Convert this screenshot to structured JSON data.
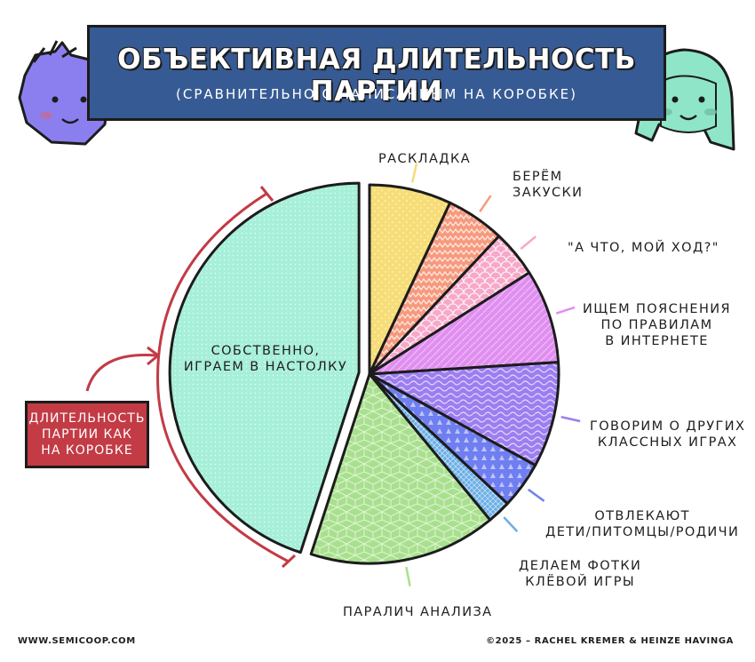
{
  "header": {
    "title": "ОБЪЕКТИВНАЯ ДЛИТЕЛЬНОСТЬ ПАРТИИ",
    "subtitle": "(СРАВНИТЕЛЬНО С НАПИСАННЫМ НА КОРОБКЕ)"
  },
  "box_label": "ДЛИТЕЛЬНОСТЬ\nПАРТИИ КАК\nНА КОРОБКЕ",
  "footer": {
    "left": "WWW.SEMICOOP.COM",
    "right": "©2025 – RACHEL KREMER & HEINZE HAVINGA"
  },
  "chart_data": {
    "type": "pie",
    "title": "ОБЪЕКТИВНАЯ ДЛИТЕЛЬНОСТЬ ПАРТИИ",
    "subtitle": "(СРАВНИТЕЛЬНО С НАПИСАННЫМ НА КОРОБКЕ)",
    "slices": [
      {
        "label": "РАСКЛАДКА",
        "value": 7,
        "color": "#f6dd77"
      },
      {
        "label": "БЕРЁМ\nЗАКУСКИ",
        "value": 5,
        "color": "#f69a7e"
      },
      {
        "label": "\"А ЧТО, МОЙ ХОД?\"",
        "value": 4,
        "color": "#f7a8c9"
      },
      {
        "label": "ИЩЕМ ПОЯСНЕНИЯ\nПО ПРАВИЛАМ\nВ ИНТЕРНЕТЕ",
        "value": 8,
        "color": "#e08ef0"
      },
      {
        "label": "ГОВОРИМ О ДРУГИХ\nКЛАССНЫХ ИГРАХ",
        "value": 9,
        "color": "#9d7ef0"
      },
      {
        "label": "ОТВЛЕКАЮТ\nДЕТИ/ПИТОМЦЫ/РОДИЧИ",
        "value": 4,
        "color": "#6f7ef0"
      },
      {
        "label": "ДЕЛАЕМ ФОТКИ\nКЛЁВОЙ ИГРЫ",
        "value": 2,
        "color": "#6aaee6"
      },
      {
        "label": "ПАРАЛИЧ АНАЛИЗА",
        "value": 16,
        "color": "#a9e08e"
      },
      {
        "label": "СОБСТВЕННО,\nИГРАЕМ В НАСТОЛКУ",
        "value": 45,
        "color": "#a6efd8",
        "exploded": true
      }
    ]
  }
}
